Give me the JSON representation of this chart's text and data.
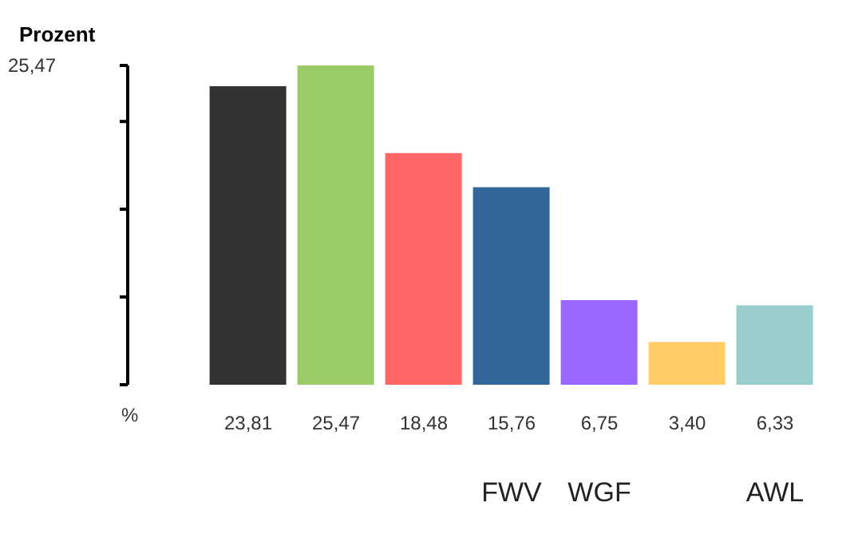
{
  "chart_data": {
    "type": "bar",
    "categories": [
      null,
      null,
      null,
      "FWV",
      "WGF",
      null,
      "AWL"
    ],
    "values": [
      23.81,
      25.47,
      18.48,
      15.76,
      6.75,
      3.4,
      6.33
    ],
    "colors": [
      "#333333",
      "#99cc66",
      "#ff6666",
      "#336699",
      "#9966ff",
      "#ffcc66",
      "#99cccc"
    ],
    "value_labels": [
      "23,81",
      "25,47",
      "18,48",
      "15,76",
      "6,75",
      "3,40",
      "6,33"
    ],
    "annotations": [
      "Prozent",
      "25,47",
      "%"
    ],
    "grid": false,
    "legend": false
  }
}
